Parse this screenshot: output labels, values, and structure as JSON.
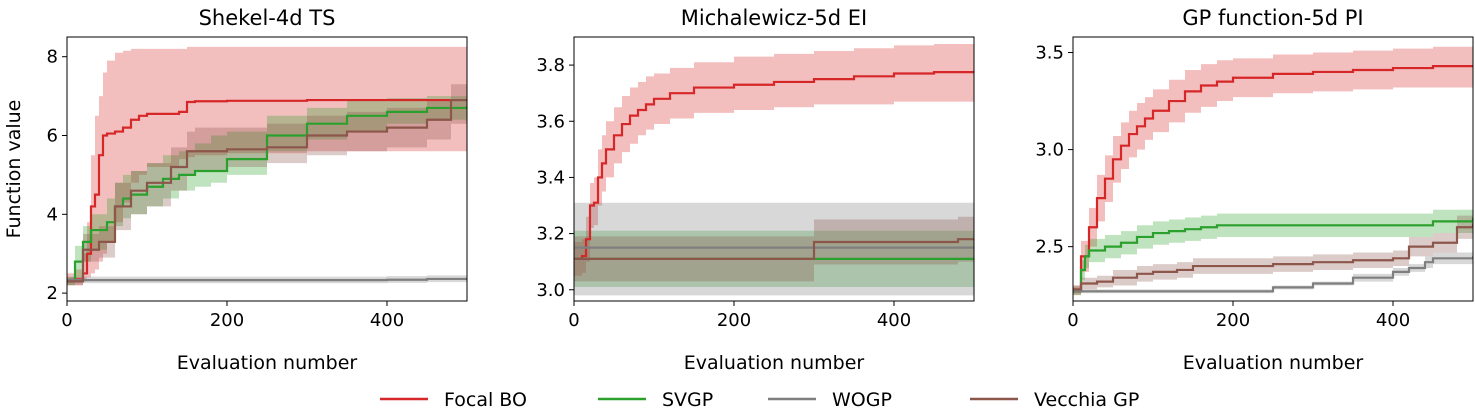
{
  "figure": {
    "legend": {
      "placement": "bottom-center",
      "entries": [
        {
          "label": "Focal BO",
          "color": "#d62728"
        },
        {
          "label": "SVGP",
          "color": "#2ca02c"
        },
        {
          "label": "WOGP",
          "color": "#7f7f7f"
        },
        {
          "label": "Vecchia GP",
          "color": "#8c564b"
        }
      ]
    }
  },
  "chart_data": [
    {
      "type": "line",
      "title": "Shekel-4d TS",
      "xlabel": "Evaluation number",
      "ylabel": "Function value",
      "xlim": [
        0,
        500
      ],
      "ylim": [
        1.8,
        8.5
      ],
      "xticks": [
        0,
        200,
        400
      ],
      "yticks": [
        2,
        4,
        6,
        8
      ],
      "grid": false,
      "series": [
        {
          "name": "Focal BO",
          "color": "#d62728",
          "step": true,
          "x": [
            0,
            10,
            20,
            25,
            30,
            35,
            40,
            45,
            50,
            60,
            70,
            80,
            90,
            100,
            140,
            150,
            160,
            200,
            300,
            400,
            500
          ],
          "y": [
            2.3,
            2.35,
            2.5,
            3.0,
            4.2,
            4.5,
            5.5,
            6.0,
            6.05,
            6.1,
            6.2,
            6.4,
            6.5,
            6.55,
            6.6,
            6.85,
            6.87,
            6.88,
            6.9,
            6.9,
            6.92
          ],
          "lower": [
            2.2,
            2.2,
            2.3,
            2.4,
            2.5,
            2.6,
            2.8,
            3.0,
            3.3,
            3.8,
            4.3,
            4.8,
            5.0,
            5.2,
            5.4,
            5.45,
            5.5,
            5.55,
            5.6,
            5.6,
            5.6
          ],
          "upper": [
            2.5,
            2.6,
            3.0,
            3.8,
            5.5,
            6.5,
            7.0,
            7.6,
            7.9,
            8.1,
            8.15,
            8.2,
            8.2,
            8.2,
            8.2,
            8.25,
            8.25,
            8.25,
            8.25,
            8.25,
            8.25
          ]
        },
        {
          "name": "SVGP",
          "color": "#2ca02c",
          "step": true,
          "x": [
            0,
            10,
            20,
            30,
            50,
            60,
            70,
            80,
            100,
            120,
            140,
            160,
            180,
            200,
            250,
            300,
            350,
            400,
            450,
            500
          ],
          "y": [
            2.3,
            2.8,
            3.3,
            3.6,
            3.8,
            4.2,
            4.4,
            4.5,
            4.7,
            4.9,
            5.0,
            5.1,
            5.1,
            5.4,
            6.0,
            6.3,
            6.5,
            6.6,
            6.7,
            6.75
          ],
          "lower": [
            2.2,
            2.4,
            2.8,
            3.1,
            3.3,
            3.7,
            3.9,
            4.0,
            4.2,
            4.4,
            4.6,
            4.7,
            4.8,
            5.0,
            5.6,
            5.9,
            6.1,
            6.3,
            6.4,
            6.5
          ],
          "upper": [
            2.4,
            3.2,
            3.7,
            4.0,
            4.4,
            4.8,
            5.0,
            5.1,
            5.3,
            5.5,
            5.6,
            5.8,
            6.0,
            6.1,
            6.5,
            6.7,
            6.9,
            6.95,
            7.0,
            7.0
          ]
        },
        {
          "name": "WOGP",
          "color": "#7f7f7f",
          "step": true,
          "x": [
            0,
            100,
            200,
            300,
            400,
            450,
            500
          ],
          "y": [
            2.33,
            2.33,
            2.33,
            2.33,
            2.34,
            2.36,
            2.38
          ],
          "lower": [
            2.25,
            2.25,
            2.25,
            2.25,
            2.26,
            2.28,
            2.3
          ],
          "upper": [
            2.42,
            2.42,
            2.42,
            2.42,
            2.43,
            2.45,
            2.47
          ]
        },
        {
          "name": "Vecchia GP",
          "color": "#8c564b",
          "step": true,
          "x": [
            0,
            20,
            40,
            60,
            80,
            100,
            130,
            150,
            160,
            200,
            250,
            300,
            350,
            400,
            450,
            480,
            500
          ],
          "y": [
            2.3,
            3.1,
            3.3,
            4.2,
            4.6,
            4.8,
            5.2,
            5.6,
            5.6,
            5.65,
            5.7,
            6.0,
            6.1,
            6.2,
            6.4,
            6.9,
            6.9
          ],
          "lower": [
            2.2,
            2.8,
            2.9,
            3.6,
            4.0,
            4.2,
            4.6,
            5.0,
            5.1,
            5.2,
            5.3,
            5.5,
            5.6,
            5.7,
            5.9,
            6.3,
            6.4
          ],
          "upper": [
            2.4,
            3.5,
            3.7,
            4.8,
            5.1,
            5.3,
            5.7,
            6.1,
            6.2,
            6.2,
            6.3,
            6.5,
            6.6,
            6.7,
            6.9,
            7.3,
            7.4
          ]
        }
      ]
    },
    {
      "type": "line",
      "title": "Michalewicz-5d EI",
      "xlabel": "Evaluation number",
      "ylabel": "",
      "xlim": [
        0,
        500
      ],
      "ylim": [
        2.96,
        3.9
      ],
      "xticks": [
        0,
        200,
        400
      ],
      "yticks": [
        3.0,
        3.2,
        3.4,
        3.6,
        3.8
      ],
      "grid": false,
      "series": [
        {
          "name": "Focal BO",
          "color": "#d62728",
          "step": true,
          "x": [
            0,
            10,
            15,
            20,
            25,
            30,
            35,
            40,
            50,
            60,
            70,
            80,
            90,
            100,
            120,
            150,
            200,
            250,
            300,
            350,
            400,
            450,
            500
          ],
          "y": [
            3.11,
            3.12,
            3.18,
            3.3,
            3.31,
            3.4,
            3.45,
            3.5,
            3.55,
            3.59,
            3.62,
            3.64,
            3.66,
            3.68,
            3.7,
            3.72,
            3.73,
            3.74,
            3.75,
            3.76,
            3.77,
            3.775,
            3.78
          ],
          "lower": [
            3.05,
            3.06,
            3.1,
            3.22,
            3.23,
            3.3,
            3.35,
            3.4,
            3.45,
            3.49,
            3.52,
            3.55,
            3.57,
            3.59,
            3.61,
            3.63,
            3.64,
            3.65,
            3.66,
            3.66,
            3.67,
            3.67,
            3.67
          ],
          "upper": [
            3.17,
            3.18,
            3.26,
            3.38,
            3.4,
            3.5,
            3.55,
            3.6,
            3.65,
            3.69,
            3.72,
            3.74,
            3.76,
            3.77,
            3.79,
            3.81,
            3.83,
            3.84,
            3.85,
            3.86,
            3.87,
            3.875,
            3.88
          ]
        },
        {
          "name": "SVGP",
          "color": "#2ca02c",
          "step": true,
          "x": [
            0,
            100,
            200,
            300,
            400,
            500
          ],
          "y": [
            3.11,
            3.11,
            3.11,
            3.11,
            3.11,
            3.11
          ],
          "lower": [
            3.01,
            3.01,
            3.01,
            3.01,
            3.01,
            3.01
          ],
          "upper": [
            3.21,
            3.21,
            3.21,
            3.21,
            3.21,
            3.21
          ]
        },
        {
          "name": "WOGP",
          "color": "#7f7f7f",
          "step": true,
          "x": [
            0,
            100,
            200,
            300,
            400,
            500
          ],
          "y": [
            3.15,
            3.15,
            3.15,
            3.15,
            3.15,
            3.15
          ],
          "lower": [
            2.98,
            2.98,
            2.98,
            2.98,
            2.98,
            2.98
          ],
          "upper": [
            3.31,
            3.31,
            3.31,
            3.31,
            3.31,
            3.31
          ]
        },
        {
          "name": "Vecchia GP",
          "color": "#8c564b",
          "step": true,
          "x": [
            0,
            100,
            200,
            295,
            300,
            400,
            480,
            500
          ],
          "y": [
            3.11,
            3.11,
            3.11,
            3.11,
            3.17,
            3.17,
            3.18,
            3.18
          ],
          "lower": [
            3.03,
            3.03,
            3.03,
            3.03,
            3.09,
            3.09,
            3.1,
            3.1
          ],
          "upper": [
            3.19,
            3.19,
            3.19,
            3.19,
            3.25,
            3.25,
            3.26,
            3.26
          ]
        }
      ]
    },
    {
      "type": "line",
      "title": "GP function-5d PI",
      "xlabel": "Evaluation number",
      "ylabel": "",
      "xlim": [
        0,
        500
      ],
      "ylim": [
        2.22,
        3.58
      ],
      "xticks": [
        0,
        200,
        400
      ],
      "yticks": [
        2.5,
        3.0,
        3.5
      ],
      "grid": false,
      "series": [
        {
          "name": "Focal BO",
          "color": "#d62728",
          "step": true,
          "x": [
            0,
            10,
            20,
            30,
            40,
            50,
            60,
            70,
            80,
            90,
            100,
            120,
            140,
            160,
            180,
            200,
            250,
            300,
            350,
            400,
            450,
            500
          ],
          "y": [
            2.27,
            2.45,
            2.6,
            2.75,
            2.85,
            2.95,
            3.02,
            3.08,
            3.12,
            3.16,
            3.2,
            3.25,
            3.3,
            3.33,
            3.35,
            3.37,
            3.39,
            3.4,
            3.41,
            3.42,
            3.43,
            3.43
          ],
          "lower": [
            2.25,
            2.37,
            2.5,
            2.63,
            2.73,
            2.83,
            2.9,
            2.96,
            3.0,
            3.05,
            3.09,
            3.14,
            3.19,
            3.22,
            3.25,
            3.27,
            3.29,
            3.3,
            3.31,
            3.32,
            3.32,
            3.32
          ],
          "upper": [
            2.3,
            2.53,
            2.7,
            2.87,
            2.97,
            3.07,
            3.14,
            3.2,
            3.24,
            3.27,
            3.31,
            3.36,
            3.41,
            3.44,
            3.46,
            3.47,
            3.49,
            3.5,
            3.51,
            3.52,
            3.53,
            3.54
          ]
        },
        {
          "name": "SVGP",
          "color": "#2ca02c",
          "step": true,
          "x": [
            0,
            10,
            15,
            20,
            40,
            60,
            80,
            100,
            120,
            140,
            160,
            180,
            200,
            300,
            400,
            450,
            500
          ],
          "y": [
            2.27,
            2.38,
            2.45,
            2.48,
            2.5,
            2.52,
            2.55,
            2.57,
            2.58,
            2.59,
            2.6,
            2.61,
            2.61,
            2.61,
            2.61,
            2.63,
            2.65
          ],
          "lower": [
            2.25,
            2.33,
            2.39,
            2.42,
            2.44,
            2.46,
            2.49,
            2.51,
            2.52,
            2.53,
            2.54,
            2.55,
            2.55,
            2.55,
            2.55,
            2.57,
            2.59
          ],
          "upper": [
            2.29,
            2.43,
            2.51,
            2.54,
            2.56,
            2.58,
            2.61,
            2.63,
            2.64,
            2.65,
            2.66,
            2.67,
            2.67,
            2.67,
            2.67,
            2.69,
            2.71
          ]
        },
        {
          "name": "WOGP",
          "color": "#7f7f7f",
          "step": true,
          "x": [
            0,
            100,
            200,
            250,
            300,
            350,
            400,
            420,
            440,
            450,
            500
          ],
          "y": [
            2.27,
            2.27,
            2.27,
            2.29,
            2.31,
            2.34,
            2.37,
            2.39,
            2.42,
            2.44,
            2.45
          ],
          "lower": [
            2.26,
            2.26,
            2.26,
            2.28,
            2.3,
            2.32,
            2.35,
            2.37,
            2.39,
            2.41,
            2.42
          ],
          "upper": [
            2.28,
            2.28,
            2.28,
            2.3,
            2.32,
            2.36,
            2.39,
            2.41,
            2.45,
            2.47,
            2.48
          ]
        },
        {
          "name": "Vecchia GP",
          "color": "#8c564b",
          "step": true,
          "x": [
            0,
            10,
            30,
            50,
            80,
            100,
            130,
            150,
            200,
            250,
            300,
            350,
            400,
            420,
            450,
            480,
            500
          ],
          "y": [
            2.28,
            2.31,
            2.32,
            2.34,
            2.36,
            2.37,
            2.38,
            2.4,
            2.4,
            2.41,
            2.42,
            2.43,
            2.44,
            2.5,
            2.52,
            2.6,
            2.62
          ],
          "lower": [
            2.26,
            2.28,
            2.29,
            2.3,
            2.32,
            2.33,
            2.34,
            2.36,
            2.36,
            2.37,
            2.38,
            2.39,
            2.4,
            2.45,
            2.47,
            2.54,
            2.56
          ],
          "upper": [
            2.3,
            2.34,
            2.35,
            2.38,
            2.4,
            2.41,
            2.42,
            2.44,
            2.44,
            2.45,
            2.46,
            2.47,
            2.48,
            2.55,
            2.57,
            2.66,
            2.68
          ]
        }
      ]
    }
  ]
}
